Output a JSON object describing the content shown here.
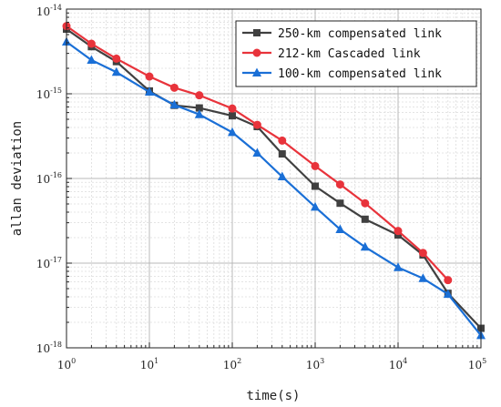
{
  "chart_data": {
    "type": "line",
    "xscale": "log",
    "yscale": "log",
    "xlabel": "time(s)",
    "ylabel": "allan deviation",
    "xlim": [
      1,
      100000
    ],
    "ylim": [
      1e-18,
      1e-14
    ],
    "x_ticks": [
      {
        "base": "10",
        "exp": "0"
      },
      {
        "base": "10",
        "exp": "1"
      },
      {
        "base": "10",
        "exp": "2"
      },
      {
        "base": "10",
        "exp": "3"
      },
      {
        "base": "10",
        "exp": "4"
      },
      {
        "base": "10",
        "exp": "5"
      }
    ],
    "y_ticks": [
      {
        "base": "10",
        "exp": "-18"
      },
      {
        "base": "10",
        "exp": "-17"
      },
      {
        "base": "10",
        "exp": "-16"
      },
      {
        "base": "10",
        "exp": "-15"
      },
      {
        "base": "10",
        "exp": "-14"
      }
    ],
    "grid": true,
    "legend_position": "top-right",
    "series": [
      {
        "name": "250-km compensated link",
        "color": "#404040",
        "marker": "square",
        "x": [
          1,
          2,
          4,
          10,
          20,
          40,
          100,
          200,
          400,
          1000,
          2000,
          4000,
          10000,
          20000,
          40000,
          100000
        ],
        "y": [
          5.8e-15,
          3.6e-15,
          2.4e-15,
          1.08e-15,
          7.3e-16,
          6.8e-16,
          5.5e-16,
          4.1e-16,
          1.95e-16,
          8.1e-17,
          5.1e-17,
          3.3e-17,
          2.15e-17,
          1.25e-17,
          4.4e-18,
          1.7e-18
        ]
      },
      {
        "name": "212-km Cascaded link",
        "color": "#e8333b",
        "marker": "circle",
        "x": [
          1,
          2,
          4,
          10,
          20,
          40,
          100,
          200,
          400,
          1000,
          2000,
          4000,
          10000,
          20000,
          40000
        ],
        "y": [
          6.3e-15,
          3.9e-15,
          2.6e-15,
          1.6e-15,
          1.18e-15,
          9.6e-16,
          6.7e-16,
          4.3e-16,
          2.8e-16,
          1.4e-16,
          8.5e-17,
          5.1e-17,
          2.4e-17,
          1.32e-17,
          6.3e-18
        ]
      },
      {
        "name": "100-km compensated link",
        "color": "#1a6fd6",
        "marker": "triangle",
        "x": [
          1,
          2,
          4,
          10,
          20,
          40,
          100,
          200,
          400,
          1000,
          2000,
          4000,
          10000,
          20000,
          40000,
          100000
        ],
        "y": [
          4.1e-15,
          2.5e-15,
          1.8e-15,
          1.05e-15,
          7.4e-16,
          5.7e-16,
          3.5e-16,
          2e-16,
          1.05e-16,
          4.6e-17,
          2.5e-17,
          1.55e-17,
          8.9e-18,
          6.6e-18,
          4.3e-18,
          1.4e-18
        ]
      }
    ]
  }
}
